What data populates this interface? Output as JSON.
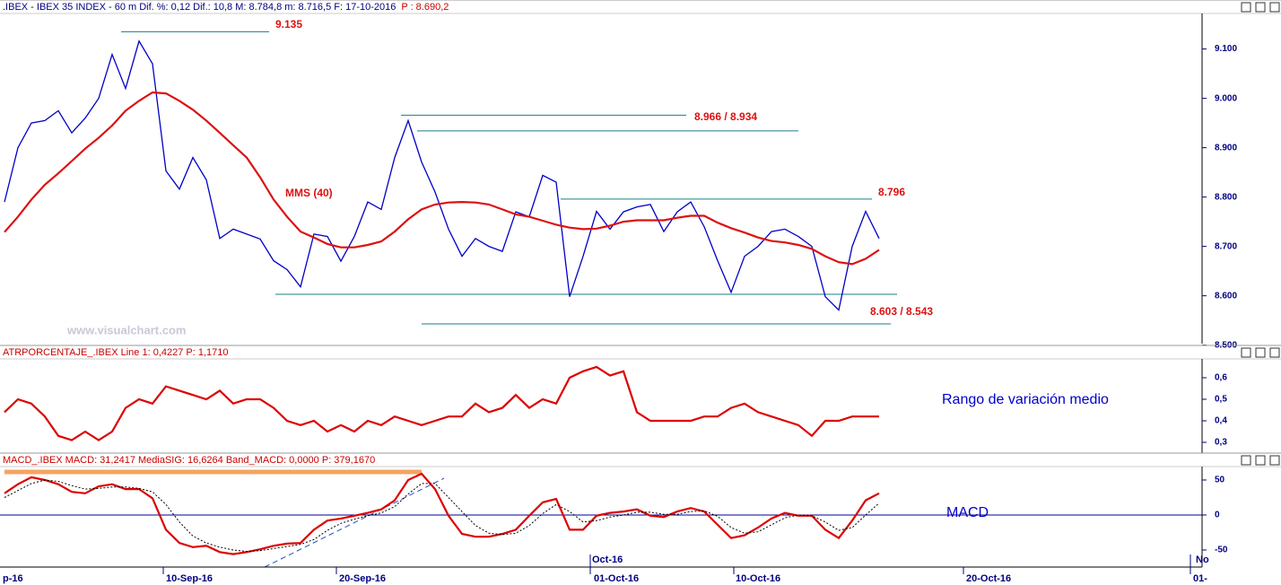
{
  "chart_data": [
    {
      "type": "line",
      "title": ".IBEX - IBEX 35 INDEX - 60 m Dif. %: 0,12 Dif.: 10,8 M: 8.784,8 m: 8.716,5 F: 17-10-2016",
      "subtitle": "P : 8.690,2",
      "ylim": [
        8503,
        9172
      ],
      "yticks": [
        {
          "value": 9100,
          "label": "9.100"
        },
        {
          "value": 9000,
          "label": "9.000"
        },
        {
          "value": 8900,
          "label": "8.900"
        },
        {
          "value": 8800,
          "label": "8.800"
        },
        {
          "value": 8700,
          "label": "8.700"
        },
        {
          "value": 8600,
          "label": "8.600"
        },
        {
          "value": 8500,
          "label": "8.500"
        }
      ],
      "series": [
        {
          "color": "#0000c8",
          "values": [
            8790,
            8900,
            8950,
            8955,
            8975,
            8930,
            8960,
            9000,
            9089,
            9020,
            9116,
            9070,
            8853,
            8816,
            8880,
            8835,
            8716,
            8735,
            8725,
            8715,
            8671,
            8653,
            8618,
            8725,
            8720,
            8670,
            8720,
            8790,
            8775,
            8880,
            8955,
            8871,
            8810,
            8735,
            8680,
            8716,
            8700,
            8690,
            8770,
            8760,
            8844,
            8830,
            8598,
            8680,
            8771,
            8735,
            8770,
            8780,
            8785,
            8730,
            8770,
            8790,
            8740,
            8671,
            8607,
            8680,
            8700,
            8730,
            8735,
            8720,
            8700,
            8598,
            8571,
            8700,
            8771,
            8716
          ]
        },
        {
          "name": "MMS (40)",
          "color": "#dd1111",
          "values": [
            8729,
            8760,
            8795,
            8825,
            8848,
            8873,
            8898,
            8920,
            8945,
            8975,
            8995,
            9012,
            9010,
            8995,
            8977,
            8955,
            8930,
            8905,
            8880,
            8840,
            8795,
            8760,
            8730,
            8718,
            8705,
            8698,
            8698,
            8703,
            8710,
            8730,
            8755,
            8775,
            8785,
            8789,
            8790,
            8789,
            8785,
            8775,
            8765,
            8760,
            8752,
            8744,
            8738,
            8735,
            8736,
            8742,
            8750,
            8753,
            8753,
            8753,
            8758,
            8762,
            8762,
            8748,
            8737,
            8728,
            8718,
            8711,
            8708,
            8703,
            8695,
            8680,
            8668,
            8664,
            8675,
            8693
          ]
        }
      ],
      "levels": [
        {
          "label": "9.135",
          "values": [
            9135
          ]
        },
        {
          "label": "8.966 / 8.934",
          "values": [
            8966,
            8934
          ]
        },
        {
          "label": "8.796",
          "values": [
            8796
          ]
        },
        {
          "label": "8.603 / 8.543",
          "values": [
            8603,
            8543
          ]
        }
      ],
      "watermark": "www.visualchart.com"
    },
    {
      "type": "line",
      "title": "ATRPORCENTAJE_.IBEX Line 1: 0,4227  P: 1,1710",
      "annotation": "Rango de variación medio",
      "ylim": [
        0.25,
        0.6875
      ],
      "yticks": [
        {
          "value": 0.6,
          "label": "0,6"
        },
        {
          "value": 0.5,
          "label": "0,5"
        },
        {
          "value": 0.4,
          "label": "0,4"
        },
        {
          "value": 0.3,
          "label": "0,3"
        }
      ],
      "series": [
        {
          "color": "#dd0000",
          "values": [
            0.44,
            0.5,
            0.48,
            0.42,
            0.33,
            0.31,
            0.35,
            0.31,
            0.35,
            0.46,
            0.5,
            0.48,
            0.56,
            0.54,
            0.52,
            0.5,
            0.54,
            0.48,
            0.5,
            0.5,
            0.46,
            0.4,
            0.38,
            0.4,
            0.35,
            0.38,
            0.35,
            0.4,
            0.38,
            0.42,
            0.4,
            0.38,
            0.4,
            0.42,
            0.42,
            0.48,
            0.44,
            0.46,
            0.52,
            0.46,
            0.5,
            0.48,
            0.6,
            0.63,
            0.65,
            0.61,
            0.63,
            0.44,
            0.4,
            0.4,
            0.4,
            0.4,
            0.42,
            0.42,
            0.46,
            0.48,
            0.44,
            0.42,
            0.4,
            0.38,
            0.33,
            0.4,
            0.4,
            0.42,
            0.42,
            0.42
          ]
        }
      ]
    },
    {
      "type": "line",
      "title": "MACD_.IBEX MACD: 31,2417  MediaSIG: 16,6264  Band_MACD: 0,0000  P: 379,1670",
      "annotation": "MACD",
      "ylim": [
        -74.4,
        69.2
      ],
      "yticks": [
        50,
        0,
        -50
      ],
      "zero_line": true,
      "series": [
        {
          "color": "#dd0000",
          "values": [
            31,
            44,
            54,
            50,
            44,
            33,
            31,
            41,
            44,
            37,
            37,
            24,
            -21,
            -40,
            -46,
            -44,
            -53,
            -56,
            -53,
            -49,
            -44,
            -41,
            -40,
            -21,
            -8,
            -5,
            -1,
            3,
            8,
            21,
            50,
            59,
            37,
            -1,
            -27,
            -31,
            -31,
            -27,
            -21,
            -1,
            18,
            23,
            -21,
            -21,
            -1,
            3,
            5,
            8,
            -1,
            -3,
            5,
            10,
            5,
            -14,
            -33,
            -29,
            -18,
            -5,
            3,
            -1,
            -1,
            -21,
            -33,
            -8,
            21,
            31
          ]
        },
        {
          "color": "#000000",
          "dashed": true,
          "values": [
            25,
            35,
            45,
            50,
            48,
            42,
            37,
            38,
            40,
            40,
            38,
            33,
            15,
            -10,
            -30,
            -40,
            -46,
            -50,
            -52,
            -51,
            -48,
            -45,
            -42,
            -35,
            -22,
            -12,
            -6,
            -1,
            3,
            12,
            30,
            45,
            45,
            25,
            5,
            -15,
            -26,
            -28,
            -26,
            -15,
            2,
            15,
            5,
            -10,
            -8,
            -3,
            0,
            4,
            4,
            1,
            1,
            5,
            6,
            -2,
            -18,
            -26,
            -24,
            -14,
            -4,
            0,
            -1,
            -10,
            -22,
            -18,
            0,
            17
          ]
        }
      ],
      "x_labels": [
        "p-16",
        "10-Sep-16",
        "20-Sep-16",
        "01-Oct-16",
        "10-Oct-16",
        "20-Oct-16",
        "01-"
      ],
      "x_labels_upper": [
        "Oct-16",
        "No"
      ]
    }
  ]
}
